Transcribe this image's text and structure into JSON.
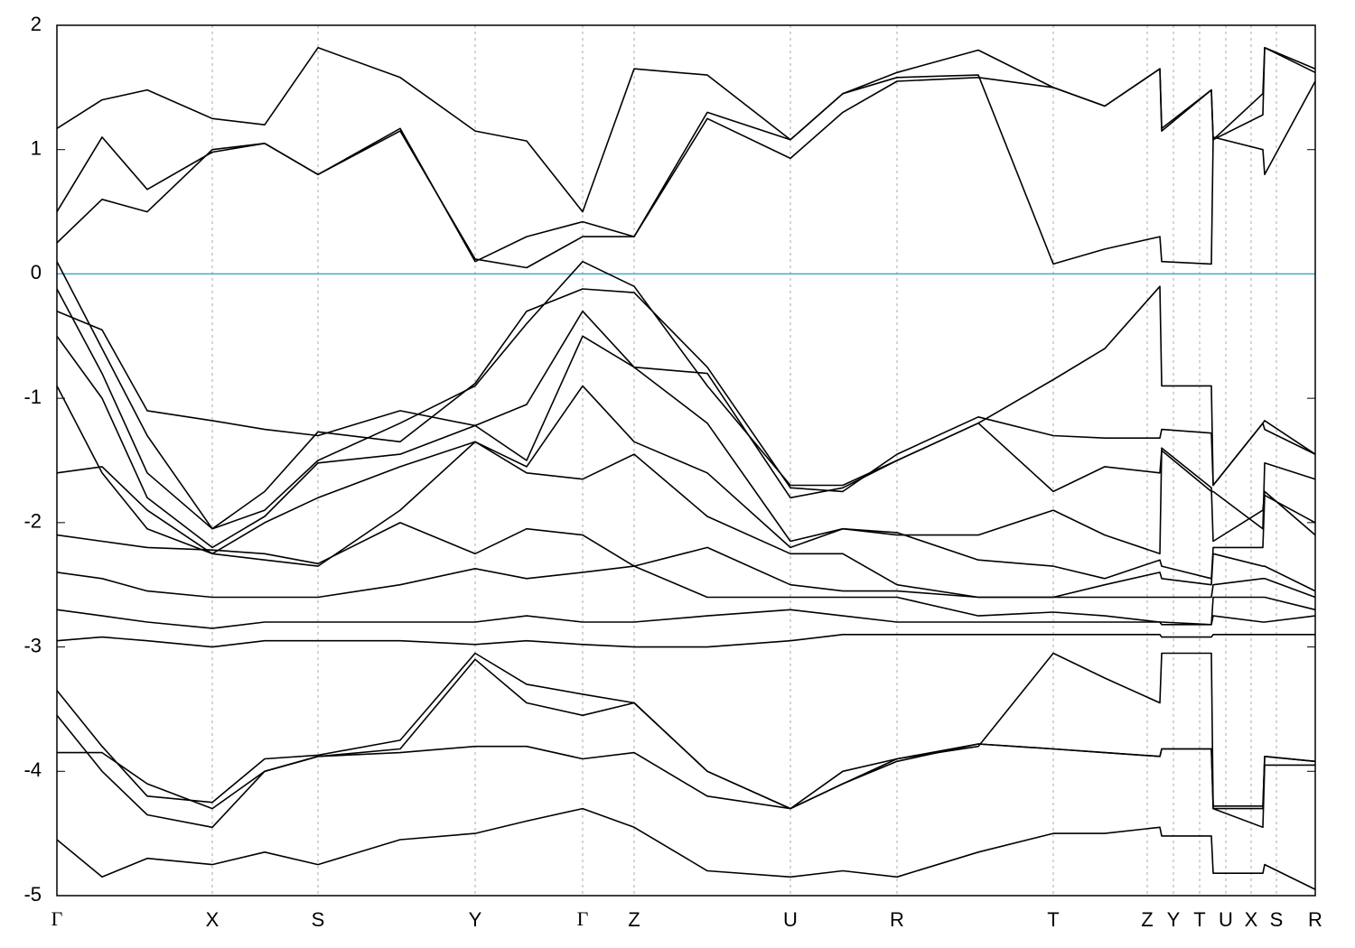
{
  "chart_data": {
    "type": "line",
    "x": [
      0,
      0.5,
      1.0,
      1.72,
      2.3,
      2.89,
      3.8,
      4.63,
      5.2,
      5.82,
      6.39,
      7.2,
      8.12,
      8.7,
      9.3,
      10.2,
      11.03,
      11.6,
      12.21,
      12.23,
      12.78,
      12.8,
      13.35,
      13.37,
      13.93
    ],
    "color": "#000000",
    "series": [
      {
        "values": [
          0.25,
          0.6,
          0.5,
          1.0,
          1.05,
          0.8,
          1.15,
          0.12,
          0.05,
          0.3,
          0.3,
          1.3,
          1.08,
          1.45,
          1.58,
          1.6,
          0.08,
          0.2,
          0.3,
          0.1,
          0.08,
          1.1,
          1.0,
          0.8,
          1.55
        ]
      },
      {
        "values": [
          0.5,
          1.1,
          0.68,
          0.98,
          1.05,
          0.8,
          1.17,
          0.1,
          0.3,
          0.42,
          0.3,
          1.25,
          0.93,
          1.3,
          1.55,
          1.58,
          1.5,
          1.35,
          1.65,
          1.15,
          1.48,
          1.08,
          1.28,
          1.82,
          1.65
        ]
      },
      {
        "values": [
          1.17,
          1.4,
          1.48,
          1.25,
          1.2,
          1.82,
          1.58,
          1.15,
          1.07,
          0.5,
          1.65,
          1.6,
          1.08,
          1.45,
          1.62,
          1.8,
          1.5,
          1.35,
          1.65,
          1.17,
          1.48,
          1.08,
          1.45,
          1.82,
          1.62
        ]
      },
      {
        "values": [
          0.1,
          -0.6,
          -1.3,
          -2.05,
          -1.9,
          -1.5,
          -1.2,
          -0.9,
          -0.4,
          0.1,
          -0.1,
          -0.9,
          -1.7,
          -1.7,
          -1.5,
          -1.2,
          -0.85,
          -0.6,
          -0.1,
          -0.9,
          -0.9,
          -1.7,
          -1.2,
          -1.25,
          -1.45
        ]
      },
      {
        "values": [
          -0.12,
          -0.8,
          -1.6,
          -2.05,
          -1.75,
          -1.27,
          -1.35,
          -0.88,
          -0.3,
          -0.12,
          -0.15,
          -0.75,
          -1.72,
          -1.75,
          -1.45,
          -1.15,
          -1.3,
          -1.32,
          -1.32,
          -1.25,
          -1.28,
          -1.7,
          -1.2,
          -1.18,
          -1.45
        ]
      },
      {
        "values": [
          -0.3,
          -0.45,
          -1.1,
          -1.18,
          -1.25,
          -1.3,
          -1.1,
          -1.22,
          -1.05,
          -0.3,
          -0.75,
          -0.8,
          -1.8,
          -1.72,
          -1.5,
          -1.2,
          -1.75,
          -1.55,
          -1.6,
          -1.42,
          -1.75,
          -1.75,
          -2.05,
          -1.52,
          -1.65
        ]
      },
      {
        "values": [
          -0.5,
          -1.0,
          -1.8,
          -2.2,
          -1.95,
          -1.52,
          -1.45,
          -1.22,
          -1.5,
          -0.5,
          -0.75,
          -1.2,
          -2.15,
          -2.05,
          -2.1,
          -2.1,
          -1.9,
          -2.1,
          -2.25,
          -1.4,
          -1.72,
          -2.15,
          -1.9,
          -1.75,
          -2.1
        ]
      },
      {
        "values": [
          -0.9,
          -1.6,
          -2.05,
          -2.25,
          -2.0,
          -1.8,
          -1.55,
          -1.35,
          -1.55,
          -0.9,
          -1.35,
          -1.6,
          -2.2,
          -2.05,
          -2.08,
          -2.3,
          -2.35,
          -2.45,
          -2.3,
          -2.35,
          -2.45,
          -2.2,
          -2.2,
          -1.78,
          -2.0
        ]
      },
      {
        "values": [
          -1.6,
          -1.55,
          -1.9,
          -2.25,
          -2.3,
          -2.35,
          -1.9,
          -1.35,
          -1.6,
          -1.65,
          -1.45,
          -1.95,
          -2.25,
          -2.25,
          -2.5,
          -2.6,
          -2.6,
          -2.5,
          -2.4,
          -2.45,
          -2.5,
          -2.25,
          -2.35,
          -2.35,
          -2.55
        ]
      },
      {
        "values": [
          -2.1,
          -2.15,
          -2.2,
          -2.22,
          -2.25,
          -2.33,
          -2.0,
          -2.25,
          -2.05,
          -2.1,
          -2.35,
          -2.2,
          -2.5,
          -2.55,
          -2.55,
          -2.6,
          -2.6,
          -2.6,
          -2.6,
          -2.6,
          -2.6,
          -2.5,
          -2.45,
          -2.45,
          -2.6
        ]
      },
      {
        "values": [
          -2.4,
          -2.45,
          -2.55,
          -2.6,
          -2.6,
          -2.6,
          -2.5,
          -2.37,
          -2.45,
          -2.4,
          -2.35,
          -2.6,
          -2.6,
          -2.6,
          -2.6,
          -2.75,
          -2.72,
          -2.75,
          -2.8,
          -2.8,
          -2.82,
          -2.6,
          -2.6,
          -2.6,
          -2.7
        ]
      },
      {
        "values": [
          -2.7,
          -2.75,
          -2.8,
          -2.85,
          -2.8,
          -2.8,
          -2.8,
          -2.8,
          -2.75,
          -2.8,
          -2.8,
          -2.75,
          -2.7,
          -2.75,
          -2.8,
          -2.8,
          -2.8,
          -2.8,
          -2.8,
          -2.82,
          -2.82,
          -2.75,
          -2.8,
          -2.8,
          -2.75
        ]
      },
      {
        "values": [
          -2.95,
          -2.92,
          -2.95,
          -3.0,
          -2.95,
          -2.95,
          -2.95,
          -2.98,
          -2.95,
          -2.98,
          -3.0,
          -3.0,
          -2.95,
          -2.9,
          -2.9,
          -2.9,
          -2.9,
          -2.9,
          -2.9,
          -2.92,
          -2.92,
          -2.9,
          -2.9,
          -2.9,
          -2.9
        ]
      },
      {
        "values": [
          -3.35,
          -3.8,
          -4.2,
          -4.25,
          -3.9,
          -3.87,
          -3.75,
          -3.05,
          -3.3,
          -3.38,
          -3.45,
          -4.0,
          -4.3,
          -4.1,
          -3.9,
          -3.8,
          -3.05,
          -3.25,
          -3.45,
          -3.05,
          -3.05,
          -4.3,
          -4.3,
          -3.88,
          -3.92
        ]
      },
      {
        "values": [
          -3.55,
          -4.0,
          -4.35,
          -4.45,
          -4.0,
          -3.88,
          -3.82,
          -3.1,
          -3.45,
          -3.55,
          -3.45,
          -4.0,
          -4.3,
          -4.1,
          -3.92,
          -3.78,
          -3.82,
          -3.85,
          -3.88,
          -3.82,
          -3.82,
          -4.3,
          -4.45,
          -3.95,
          -3.95
        ]
      },
      {
        "values": [
          -3.85,
          -3.85,
          -4.1,
          -4.3,
          -4.0,
          -3.88,
          -3.85,
          -3.8,
          -3.8,
          -3.9,
          -3.85,
          -4.2,
          -4.3,
          -4.0,
          -3.9,
          -3.78,
          -3.82,
          -3.85,
          -3.88,
          -3.82,
          -3.82,
          -4.28,
          -4.28,
          -3.88,
          -3.92
        ]
      },
      {
        "values": [
          -4.55,
          -4.85,
          -4.7,
          -4.75,
          -4.65,
          -4.75,
          -4.55,
          -4.5,
          -4.4,
          -4.3,
          -4.45,
          -4.8,
          -4.85,
          -4.8,
          -4.85,
          -4.65,
          -4.5,
          -4.5,
          -4.45,
          -4.52,
          -4.52,
          -4.82,
          -4.82,
          -4.75,
          -4.95
        ]
      }
    ],
    "hline": {
      "value": 0,
      "color": "#4aa8c8"
    },
    "xlim": [
      0,
      13.93
    ],
    "ylim": [
      -5,
      2
    ],
    "yticks": [
      -5,
      -4,
      -3,
      -2,
      -1,
      0,
      1,
      2
    ],
    "xticks": [
      {
        "value": 0,
        "label": "Γ"
      },
      {
        "value": 1.72,
        "label": "X"
      },
      {
        "value": 2.89,
        "label": "S"
      },
      {
        "value": 4.63,
        "label": "Y"
      },
      {
        "value": 5.82,
        "label": "Γ"
      },
      {
        "value": 6.39,
        "label": "Z"
      },
      {
        "value": 8.12,
        "label": "U"
      },
      {
        "value": 9.3,
        "label": "R"
      },
      {
        "value": 11.03,
        "label": "T"
      },
      {
        "value": 12.07,
        "label": "Z"
      },
      {
        "value": 12.36,
        "label": "Y"
      },
      {
        "value": 12.65,
        "label": "T"
      },
      {
        "value": 12.94,
        "label": "U"
      },
      {
        "value": 13.22,
        "label": "X"
      },
      {
        "value": 13.5,
        "label": "S"
      },
      {
        "value": 13.93,
        "label": "R"
      }
    ],
    "grid": true
  }
}
